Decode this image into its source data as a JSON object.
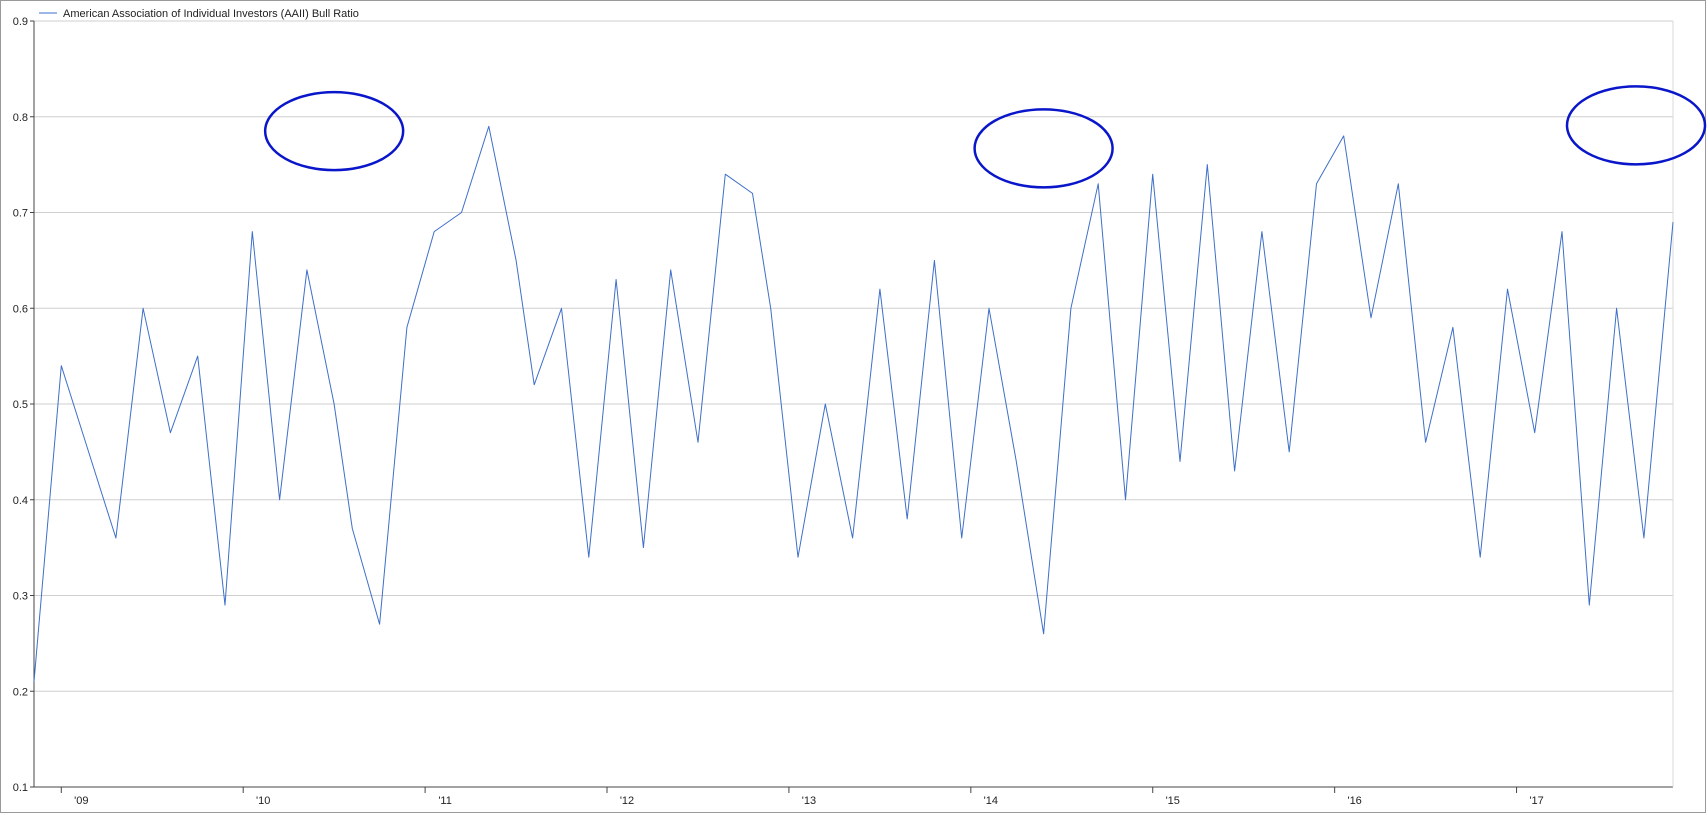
{
  "chart_data": {
    "type": "line",
    "title": "",
    "xlabel": "",
    "ylabel": "",
    "ylim": [
      0.1,
      0.9
    ],
    "yticks": [
      "0.1",
      "0.2",
      "0.3",
      "0.4",
      "0.5",
      "0.6",
      "0.7",
      "0.8",
      "0.9"
    ],
    "xlim": [
      2008.85,
      2017.86
    ],
    "xticks": [
      {
        "label": "'09",
        "x": 2009.0
      },
      {
        "label": "'10",
        "x": 2010.0
      },
      {
        "label": "'11",
        "x": 2011.0
      },
      {
        "label": "'12",
        "x": 2012.0
      },
      {
        "label": "'13",
        "x": 2013.0
      },
      {
        "label": "'14",
        "x": 2014.0
      },
      {
        "label": "'15",
        "x": 2015.0
      },
      {
        "label": "'16",
        "x": 2016.0
      },
      {
        "label": "'17",
        "x": 2017.0
      }
    ],
    "grid": "horizontal",
    "legend_position": "top-left",
    "series": [
      {
        "name": "American Association of Individual Investors (AAII) Bull Ratio",
        "color": "#3e6fc9",
        "x": [
          2008.85,
          2009.0,
          2009.15,
          2009.3,
          2009.45,
          2009.6,
          2009.75,
          2009.9,
          2010.05,
          2010.2,
          2010.35,
          2010.5,
          2010.6,
          2010.75,
          2010.9,
          2011.05,
          2011.2,
          2011.35,
          2011.5,
          2011.6,
          2011.75,
          2011.9,
          2012.05,
          2012.2,
          2012.35,
          2012.5,
          2012.65,
          2012.8,
          2012.9,
          2013.05,
          2013.2,
          2013.35,
          2013.5,
          2013.65,
          2013.8,
          2013.95,
          2014.1,
          2014.25,
          2014.4,
          2014.55,
          2014.7,
          2014.85,
          2015.0,
          2015.15,
          2015.3,
          2015.45,
          2015.6,
          2015.75,
          2015.9,
          2016.05,
          2016.2,
          2016.35,
          2016.5,
          2016.65,
          2016.8,
          2016.95,
          2017.1,
          2017.25,
          2017.4,
          2017.55,
          2017.7,
          2017.86
        ],
        "values": [
          0.21,
          0.54,
          0.45,
          0.36,
          0.6,
          0.47,
          0.55,
          0.29,
          0.68,
          0.4,
          0.64,
          0.5,
          0.37,
          0.27,
          0.58,
          0.68,
          0.7,
          0.79,
          0.65,
          0.52,
          0.6,
          0.34,
          0.63,
          0.35,
          0.64,
          0.46,
          0.74,
          0.72,
          0.6,
          0.34,
          0.5,
          0.36,
          0.62,
          0.38,
          0.65,
          0.36,
          0.6,
          0.44,
          0.26,
          0.6,
          0.73,
          0.4,
          0.74,
          0.44,
          0.75,
          0.43,
          0.68,
          0.45,
          0.73,
          0.78,
          0.59,
          0.73,
          0.46,
          0.58,
          0.34,
          0.62,
          0.47,
          0.68,
          0.29,
          0.6,
          0.36,
          0.69
        ]
      }
    ],
    "annotations": [
      {
        "type": "ellipse",
        "x": 2010.5,
        "y": 0.785,
        "color": "#0a16c9"
      },
      {
        "type": "ellipse",
        "x": 2014.4,
        "y": 0.767,
        "color": "#0a16c9"
      },
      {
        "type": "ellipse",
        "x": 2017.86,
        "y": 0.791,
        "color": "#0a16c9"
      }
    ]
  }
}
